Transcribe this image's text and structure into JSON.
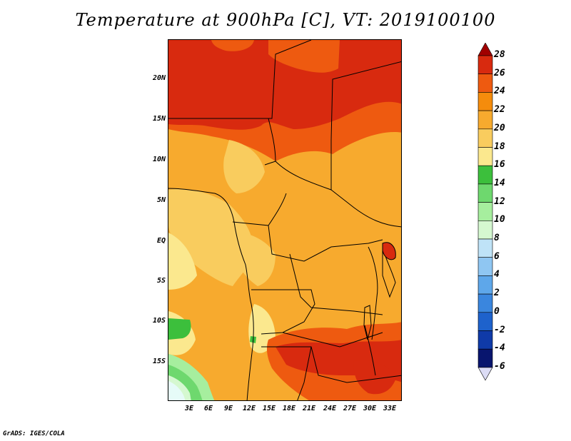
{
  "title": "Temperature at 900hPa [C], VT: 2019100100",
  "footer": "GrADS: IGES/COLA",
  "map": {
    "lat_labels": [
      "20N",
      "15N",
      "10N",
      "5N",
      "EQ",
      "5S",
      "10S",
      "15S"
    ],
    "lon_labels": [
      "3E",
      "6E",
      "9E",
      "12E",
      "15E",
      "18E",
      "21E",
      "24E",
      "27E",
      "30E",
      "33E"
    ]
  },
  "colorbar": {
    "labels": [
      "28",
      "26",
      "24",
      "22",
      "20",
      "18",
      "16",
      "14",
      "12",
      "10",
      "8",
      "6",
      "4",
      "2",
      "0",
      "-2",
      "-4",
      "-6"
    ],
    "colors": [
      "#a00000",
      "#d82a0f",
      "#ee5a10",
      "#f58c0c",
      "#f7aa2e",
      "#f9cc5e",
      "#fbe88e",
      "#3cbf3c",
      "#6ed86e",
      "#a6ee9e",
      "#d5f8d0",
      "#bfe3f7",
      "#8fc6f2",
      "#5ea7ea",
      "#3a86de",
      "#1e62cc",
      "#0f3aa8",
      "#08156e",
      "#dcdcf5"
    ]
  }
}
